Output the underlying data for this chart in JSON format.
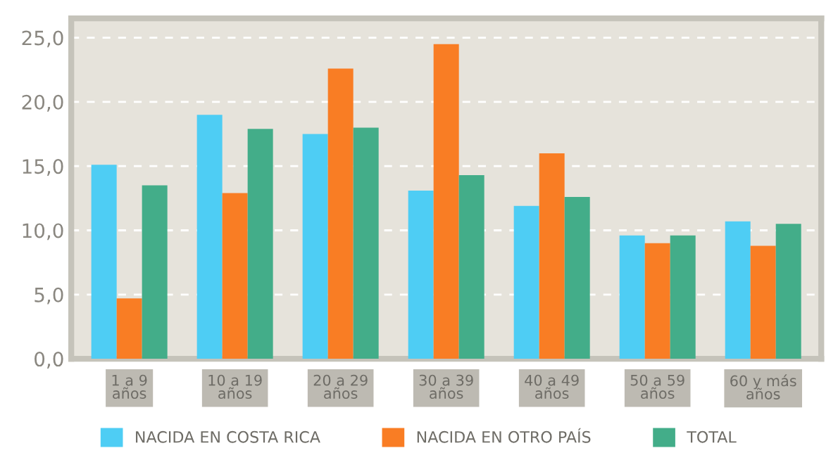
{
  "chart_data": {
    "type": "bar",
    "categories": [
      "1 a 9\naños",
      "10 a 19\naños",
      "20 a 29\naños",
      "30 a 39\naños",
      "40 a 49\naños",
      "50 a 59\naños",
      "60 y más\naños"
    ],
    "series": [
      {
        "name": "NACIDA EN COSTA RICA",
        "color": "#4ecdf4",
        "values": [
          15.1,
          19.0,
          17.5,
          13.1,
          11.9,
          9.6,
          10.7
        ]
      },
      {
        "name": "NACIDA EN OTRO PAÍS",
        "color": "#f97d24",
        "values": [
          4.7,
          12.9,
          22.6,
          24.5,
          16.0,
          9.0,
          8.8
        ]
      },
      {
        "name": "TOTAL",
        "color": "#43ad89",
        "values": [
          13.5,
          17.9,
          18.0,
          14.3,
          12.6,
          9.6,
          10.5
        ]
      }
    ],
    "ylim": [
      0,
      26.5
    ],
    "yticks": [
      {
        "value": 0,
        "label": "0,0"
      },
      {
        "value": 5,
        "label": "5,0"
      },
      {
        "value": 10,
        "label": "10,0"
      },
      {
        "value": 15,
        "label": "15,0"
      },
      {
        "value": 20,
        "label": "20,0"
      },
      {
        "value": 25,
        "label": "25,0"
      }
    ],
    "grid": "y",
    "legend": "bottom"
  }
}
